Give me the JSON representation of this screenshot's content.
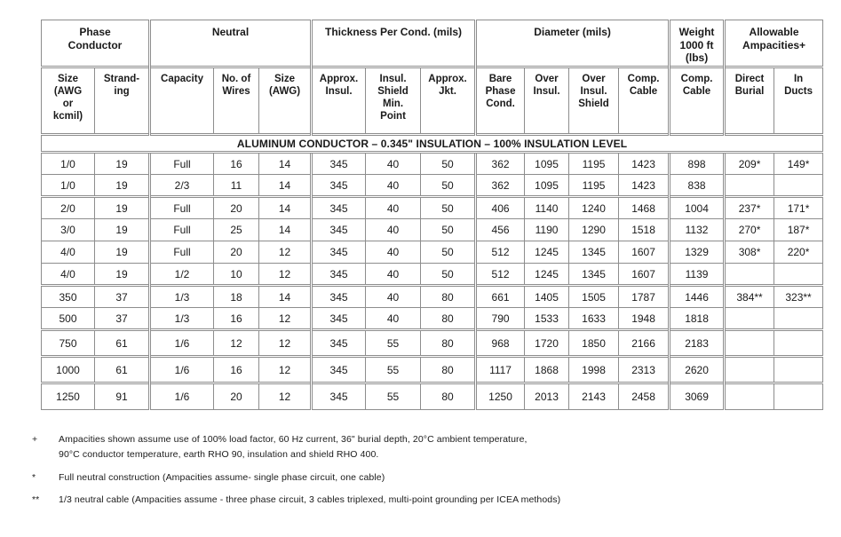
{
  "table": {
    "section_title": "ALUMINUM CONDUCTOR – 0.345\" INSULATION – 100% INSULATION LEVEL",
    "column_groups": [
      {
        "label": "Phase\nConductor",
        "span": 2
      },
      {
        "label": "Neutral",
        "span": 3
      },
      {
        "label": "Thickness Per Cond. (mils)",
        "span": 3
      },
      {
        "label": "Diameter (mils)",
        "span": 4
      },
      {
        "label": "Weight\n1000 ft\n(lbs)",
        "span": 1
      },
      {
        "label": "Allowable\nAmpacities+",
        "span": 2
      }
    ],
    "columns": [
      "Size\n(AWG\nor\nkcmil)",
      "Strand-\ning",
      "Capacity",
      "No. of\nWires",
      "Size\n(AWG)",
      "Approx.\nInsul.",
      "Insul.\nShield\nMin.\nPoint",
      "Approx.\nJkt.",
      "Bare\nPhase\nCond.",
      "Over\nInsul.",
      "Over\nInsul.\nShield",
      "Comp.\nCable",
      "Comp.\nCable",
      "Direct\nBurial",
      "In\nDucts"
    ],
    "rows": [
      [
        "1/0",
        "19",
        "Full",
        "16",
        "14",
        "345",
        "40",
        "50",
        "362",
        "1095",
        "1195",
        "1423",
        "898",
        "209*",
        "149*"
      ],
      [
        "1/0",
        "19",
        "2/3",
        "11",
        "14",
        "345",
        "40",
        "50",
        "362",
        "1095",
        "1195",
        "1423",
        "838",
        "",
        ""
      ],
      [
        "2/0",
        "19",
        "Full",
        "20",
        "14",
        "345",
        "40",
        "50",
        "406",
        "1140",
        "1240",
        "1468",
        "1004",
        "237*",
        "171*"
      ],
      [
        "3/0",
        "19",
        "Full",
        "25",
        "14",
        "345",
        "40",
        "50",
        "456",
        "1190",
        "1290",
        "1518",
        "1132",
        "270*",
        "187*"
      ],
      [
        "4/0",
        "19",
        "Full",
        "20",
        "12",
        "345",
        "40",
        "50",
        "512",
        "1245",
        "1345",
        "1607",
        "1329",
        "308*",
        "220*"
      ],
      [
        "4/0",
        "19",
        "1/2",
        "10",
        "12",
        "345",
        "40",
        "50",
        "512",
        "1245",
        "1345",
        "1607",
        "1139",
        "",
        ""
      ],
      [
        "350",
        "37",
        "1/3",
        "18",
        "14",
        "345",
        "40",
        "80",
        "661",
        "1405",
        "1505",
        "1787",
        "1446",
        "384**",
        "323**"
      ],
      [
        "500",
        "37",
        "1/3",
        "16",
        "12",
        "345",
        "40",
        "80",
        "790",
        "1533",
        "1633",
        "1948",
        "1818",
        "",
        ""
      ],
      [
        "750",
        "61",
        "1/6",
        "12",
        "12",
        "345",
        "55",
        "80",
        "968",
        "1720",
        "1850",
        "2166",
        "2183",
        "",
        ""
      ],
      [
        "1000",
        "61",
        "1/6",
        "16",
        "12",
        "345",
        "55",
        "80",
        "1117",
        "1868",
        "1998",
        "2313",
        "2620",
        "",
        ""
      ],
      [
        "1250",
        "91",
        "1/6",
        "20",
        "12",
        "345",
        "55",
        "80",
        "1250",
        "2013",
        "2143",
        "2458",
        "3069",
        "",
        ""
      ]
    ],
    "row_groups": [
      [
        0,
        1
      ],
      [
        2,
        3,
        4,
        5
      ],
      [
        6,
        7
      ],
      [
        8
      ],
      [
        9
      ],
      [
        10
      ]
    ]
  },
  "footnotes": [
    {
      "marker": "+",
      "text": "Ampacities shown assume use of 100% load factor, 60 Hz current, 36\" burial depth, 20°C ambient temperature,\n90°C conductor temperature, earth RHO 90, insulation and shield RHO 400."
    },
    {
      "marker": "*",
      "text": "Full neutral construction (Ampacities assume- single phase circuit, one cable)"
    },
    {
      "marker": "**",
      "text": "1/3 neutral cable (Ampacities assume - three phase circuit, 3 cables triplexed, multi-point grounding per ICEA methods)"
    }
  ],
  "colors": {
    "border": "#8d8d8d",
    "text": "#1a1a1a",
    "background": "#ffffff"
  }
}
